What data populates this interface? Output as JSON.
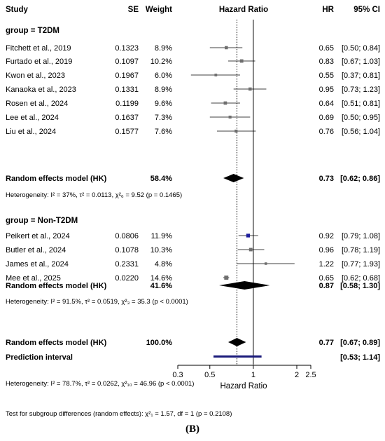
{
  "headers": {
    "study": "Study",
    "se": "SE",
    "weight": "Weight",
    "effect": "Hazard Ratio",
    "hr": "HR",
    "ci": "95% CI"
  },
  "caption": "(B)",
  "chart_data": {
    "type": "forest",
    "axis": {
      "label": "Hazard Ratio",
      "scale": "log",
      "ticks": [
        "0.3",
        "0.5",
        "1",
        "2",
        "2.5"
      ],
      "tick_values": [
        0.3,
        0.5,
        1,
        2,
        2.5
      ],
      "range": [
        0.3,
        2.5
      ],
      "overall_line": 0.77
    },
    "groups": [
      {
        "header": "group = T2DM",
        "studies": [
          {
            "name": "Fitchett et al., 2019",
            "se": "0.1323",
            "weight": "8.9%",
            "hr": 0.65,
            "lo": 0.5,
            "hi": 0.84,
            "hr_text": "0.65",
            "ci_text": "[0.50; 0.84]"
          },
          {
            "name": "Furtado et al., 2019",
            "se": "0.1097",
            "weight": "10.2%",
            "hr": 0.83,
            "lo": 0.67,
            "hi": 1.03,
            "hr_text": "0.83",
            "ci_text": "[0.67; 1.03]"
          },
          {
            "name": "Kwon et al., 2023",
            "se": "0.1967",
            "weight": "6.0%",
            "hr": 0.55,
            "lo": 0.37,
            "hi": 0.81,
            "hr_text": "0.55",
            "ci_text": "[0.37; 0.81]"
          },
          {
            "name": "Kanaoka et al., 2023",
            "se": "0.1331",
            "weight": "8.9%",
            "hr": 0.95,
            "lo": 0.73,
            "hi": 1.23,
            "hr_text": "0.95",
            "ci_text": "[0.73; 1.23]"
          },
          {
            "name": "Rosen et al., 2024",
            "se": "0.1199",
            "weight": "9.6%",
            "hr": 0.64,
            "lo": 0.51,
            "hi": 0.81,
            "hr_text": "0.64",
            "ci_text": "[0.51; 0.81]"
          },
          {
            "name": "Lee et al., 2024",
            "se": "0.1637",
            "weight": "7.3%",
            "hr": 0.69,
            "lo": 0.5,
            "hi": 0.95,
            "hr_text": "0.69",
            "ci_text": "[0.50; 0.95]"
          },
          {
            "name": "Liu et al., 2024",
            "se": "0.1577",
            "weight": "7.6%",
            "hr": 0.76,
            "lo": 0.56,
            "hi": 1.04,
            "hr_text": "0.76",
            "ci_text": "[0.56; 1.04]"
          }
        ],
        "summary": {
          "label": "Random effects model (HK)",
          "weight": "58.4%",
          "hr": 0.73,
          "lo": 0.62,
          "hi": 0.86,
          "hr_text": "0.73",
          "ci_text": "[0.62; 0.86]"
        },
        "heterogeneity": "Heterogeneity: I² = 37%, τ² = 0.0113, χ²₆ = 9.52 (p = 0.1465)"
      },
      {
        "header": "group = Non-T2DM",
        "studies": [
          {
            "name": "Peikert et al., 2024",
            "se": "0.0806",
            "weight": "11.9%",
            "hr": 0.92,
            "lo": 0.79,
            "hi": 1.08,
            "hr_text": "0.92",
            "ci_text": "[0.79; 1.08]",
            "color": "#1f1f9e"
          },
          {
            "name": "Butler et al., 2024",
            "se": "0.1078",
            "weight": "10.3%",
            "hr": 0.96,
            "lo": 0.78,
            "hi": 1.19,
            "hr_text": "0.96",
            "ci_text": "[0.78; 1.19]"
          },
          {
            "name": "James et al., 2024",
            "se": "0.2331",
            "weight": "4.8%",
            "hr": 1.22,
            "lo": 0.77,
            "hi": 1.93,
            "hr_text": "1.22",
            "ci_text": "[0.77; 1.93]"
          },
          {
            "name": "Mee et al., 2025",
            "se": "0.0220",
            "weight": "14.6%",
            "hr": 0.65,
            "lo": 0.62,
            "hi": 0.68,
            "hr_text": "0.65",
            "ci_text": "[0.62; 0.68]"
          }
        ],
        "summary": {
          "label": "Random effects model (HK)",
          "weight": "41.6%",
          "hr": 0.87,
          "lo": 0.58,
          "hi": 1.3,
          "hr_text": "0.87",
          "ci_text": "[0.58; 1.30]"
        },
        "heterogeneity": "Heterogeneity: I² = 91.5%, τ² = 0.0519, χ²₃ = 35.3 (p < 0.0001)"
      }
    ],
    "overall": {
      "label": "Random effects model (HK)",
      "weight": "100.0%",
      "hr": 0.77,
      "lo": 0.67,
      "hi": 0.89,
      "hr_text": "0.77",
      "ci_text": "[0.67; 0.89]"
    },
    "prediction": {
      "label": "Prediction interval",
      "lo": 0.53,
      "hi": 1.14,
      "ci_text": "[0.53; 1.14]",
      "color": "#1a1a7a"
    },
    "overall_heterogeneity": "Heterogeneity: I² = 78.7%, τ² = 0.0262, χ²₁₀ = 46.96 (p < 0.0001)",
    "subgroup_test": "Test for subgroup differences (random effects): χ²₁ = 1.57, df = 1 (p = 0.2108)"
  }
}
